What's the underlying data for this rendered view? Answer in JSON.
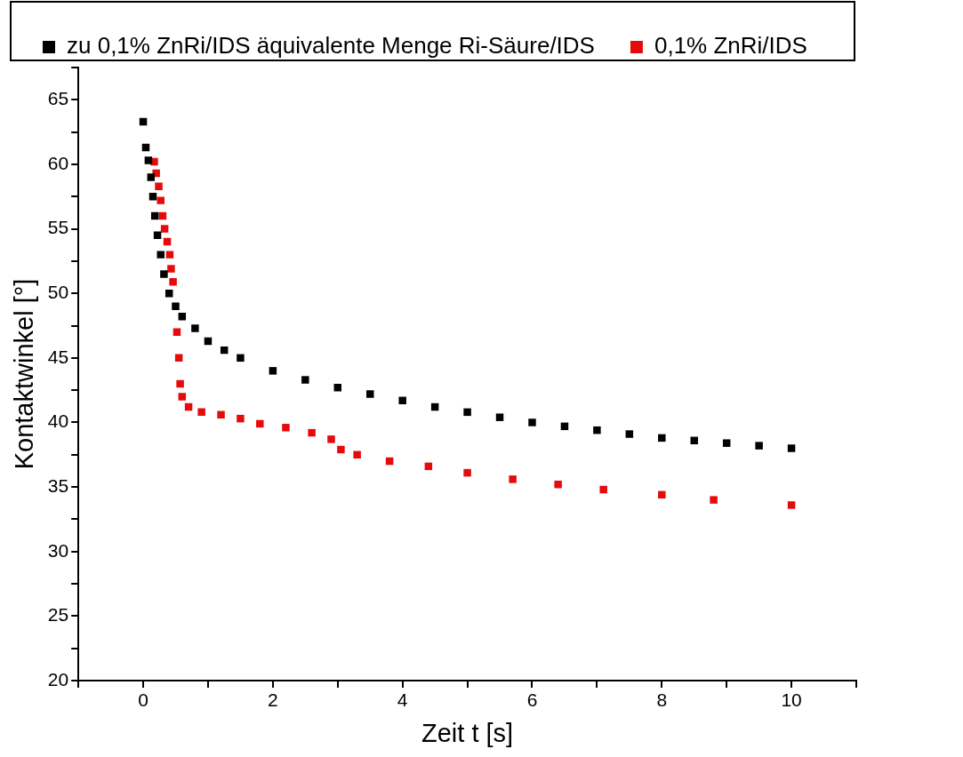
{
  "chart_data": {
    "type": "scatter",
    "xlabel": "Zeit t [s]",
    "ylabel": "Kontaktwinkel [°]",
    "marker": "square",
    "legend": "top",
    "grid": false,
    "xlim": [
      -1,
      11
    ],
    "xticks": [
      {
        "value": -1,
        "label": null
      },
      0,
      {
        "value": 1,
        "label": null
      },
      2,
      {
        "value": 3,
        "label": null
      },
      4,
      {
        "value": 5,
        "label": null
      },
      6,
      {
        "value": 7,
        "label": null
      },
      8,
      {
        "value": 9,
        "label": null
      },
      10,
      {
        "value": 11,
        "label": null
      }
    ],
    "ylim": [
      20,
      67.5
    ],
    "yticks": [
      20,
      {
        "value": 22.5,
        "label": null
      },
      25,
      {
        "value": 27.5,
        "label": null
      },
      30,
      {
        "value": 32.5,
        "label": null
      },
      35,
      {
        "value": 37.5,
        "label": null
      },
      40,
      {
        "value": 42.5,
        "label": null
      },
      45,
      {
        "value": 47.5,
        "label": null
      },
      50,
      {
        "value": 52.5,
        "label": null
      },
      55,
      {
        "value": 57.5,
        "label": null
      },
      60,
      {
        "value": 62.5,
        "label": null
      },
      65,
      {
        "value": 67.5,
        "label": null
      }
    ],
    "series": [
      {
        "name": "zu 0,1% ZnRi/IDS äquivalente Menge Ri-Säure/IDS",
        "color": "#000000",
        "x": [
          0,
          0.04,
          0.08,
          0.12,
          0.15,
          0.18,
          0.22,
          0.27,
          0.32,
          0.4,
          0.5,
          0.6,
          0.8,
          1,
          1.25,
          1.5,
          2,
          2.5,
          3,
          3.5,
          4,
          4.5,
          5,
          5.5,
          6,
          6.5,
          7,
          7.5,
          8,
          8.5,
          9,
          9.5,
          10
        ],
        "values": [
          63.3,
          61.3,
          60.3,
          59,
          57.5,
          56,
          54.5,
          53,
          51.5,
          50,
          49,
          48.2,
          47.3,
          46.3,
          45.6,
          45,
          44,
          43.3,
          42.7,
          42.2,
          41.7,
          41.2,
          40.8,
          40.4,
          40,
          39.7,
          39.4,
          39.1,
          38.8,
          38.6,
          38.4,
          38.2,
          38
        ]
      },
      {
        "name": "0,1% ZnRi/IDS",
        "color": "#e50b0b",
        "x": [
          0.17,
          0.2,
          0.24,
          0.27,
          0.3,
          0.33,
          0.37,
          0.41,
          0.43,
          0.46,
          0.52,
          0.55,
          0.57,
          0.6,
          0.7,
          0.9,
          1.2,
          1.5,
          1.8,
          2.2,
          2.6,
          2.9,
          3.05,
          3.3,
          3.8,
          4.4,
          5,
          5.7,
          6.4,
          7.1,
          8,
          8.8,
          10
        ],
        "values": [
          60.2,
          59.3,
          58.3,
          57.2,
          56,
          55,
          54,
          53,
          51.9,
          50.9,
          47,
          45,
          43,
          42,
          41.2,
          40.8,
          40.6,
          40.3,
          39.9,
          39.6,
          39.2,
          38.7,
          37.9,
          37.5,
          37,
          36.6,
          36.1,
          35.6,
          35.2,
          34.8,
          34.4,
          34,
          33.6
        ]
      }
    ]
  }
}
